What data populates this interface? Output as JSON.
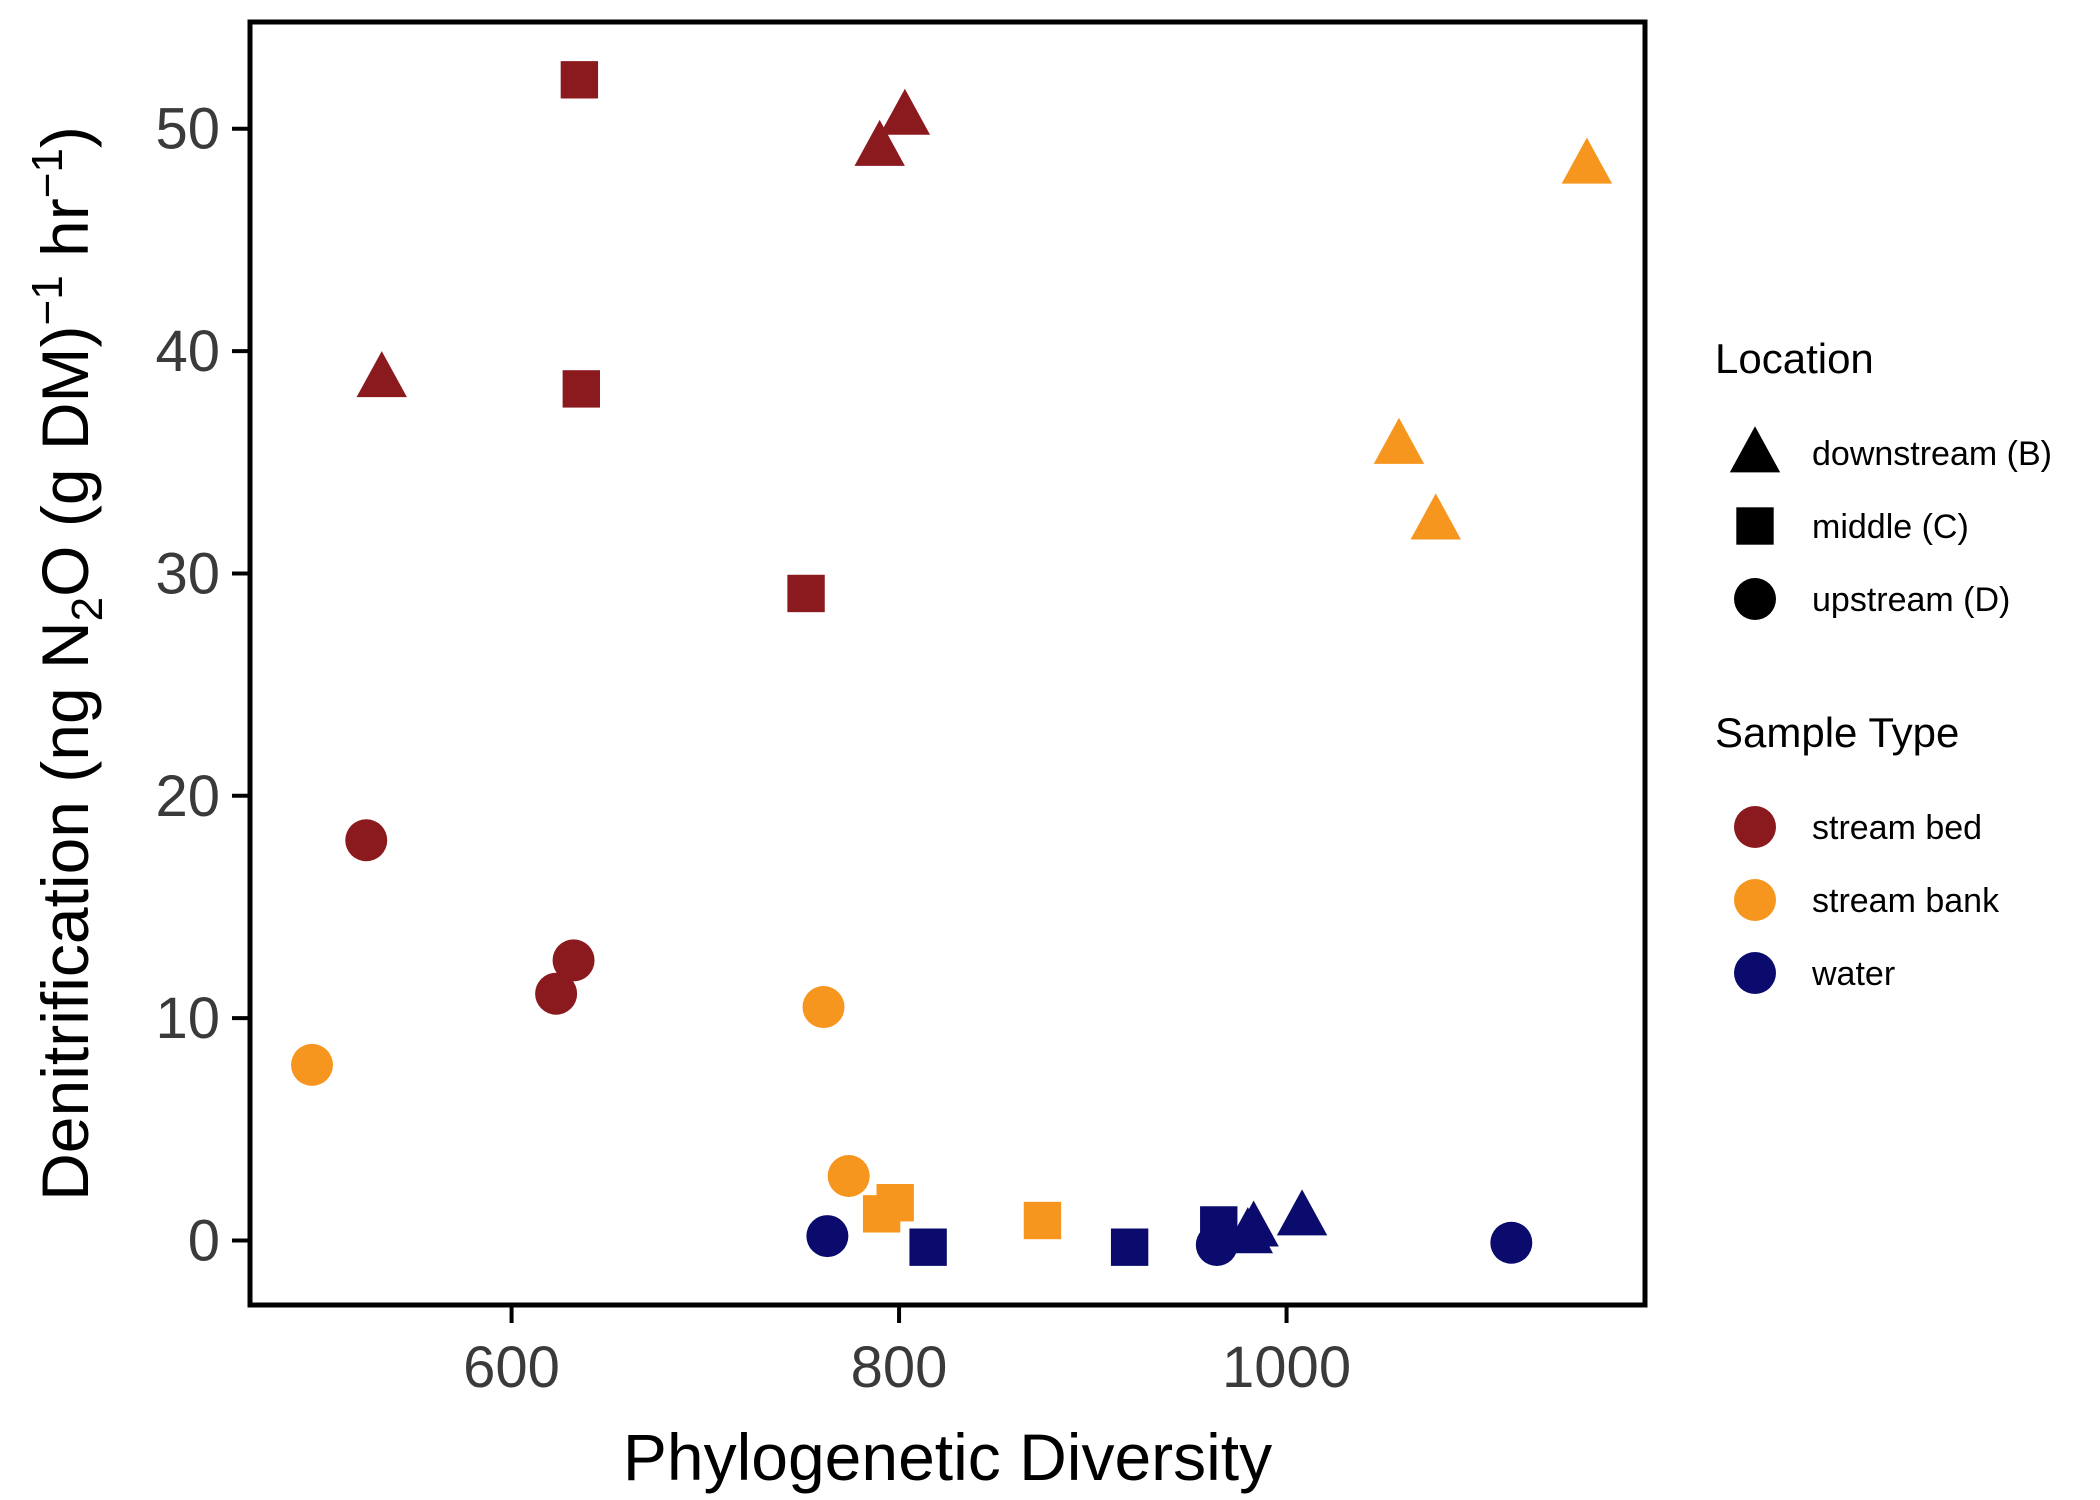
{
  "chart_data": {
    "type": "scatter",
    "xlabel": "Phylogenetic Diversity",
    "ylabel_parts": [
      "Denitrification (ng N",
      "2",
      "O (g DM)",
      "−1",
      " hr",
      "−1",
      ")"
    ],
    "xlim": [
      465,
      1185
    ],
    "ylim": [
      -2.9,
      54.8
    ],
    "xticks": [
      600,
      800,
      1000
    ],
    "yticks": [
      0,
      10,
      20,
      30,
      40,
      50
    ],
    "grid": false,
    "legend_position": "right",
    "legends": {
      "location": {
        "title": "Location",
        "items": [
          {
            "key": "downstream",
            "label": "downstream (B)",
            "shape": "triangle"
          },
          {
            "key": "middle",
            "label": "middle (C)",
            "shape": "square"
          },
          {
            "key": "upstream",
            "label": "upstream (D)",
            "shape": "circle"
          }
        ]
      },
      "sample_type": {
        "title": "Sample Type",
        "items": [
          {
            "key": "bed",
            "label": "stream bed",
            "color": "#8B1A1F"
          },
          {
            "key": "bank",
            "label": "stream bank",
            "color": "#F7961E"
          },
          {
            "key": "water",
            "label": "water",
            "color": "#0B0B6E"
          }
        ]
      }
    },
    "points": [
      {
        "x": 533,
        "y": 38.8,
        "location": "downstream",
        "type": "bed"
      },
      {
        "x": 635,
        "y": 52.2,
        "location": "middle",
        "type": "bed"
      },
      {
        "x": 636,
        "y": 38.3,
        "location": "middle",
        "type": "bed"
      },
      {
        "x": 790,
        "y": 49.2,
        "location": "downstream",
        "type": "bed"
      },
      {
        "x": 803,
        "y": 50.6,
        "location": "downstream",
        "type": "bed"
      },
      {
        "x": 752,
        "y": 29.1,
        "location": "middle",
        "type": "bed"
      },
      {
        "x": 525,
        "y": 18.0,
        "location": "upstream",
        "type": "bed"
      },
      {
        "x": 632,
        "y": 12.6,
        "location": "upstream",
        "type": "bed"
      },
      {
        "x": 623,
        "y": 11.1,
        "location": "upstream",
        "type": "bed"
      },
      {
        "x": 1155,
        "y": 48.4,
        "location": "downstream",
        "type": "bank"
      },
      {
        "x": 1058,
        "y": 35.8,
        "location": "downstream",
        "type": "bank"
      },
      {
        "x": 1077,
        "y": 32.4,
        "location": "downstream",
        "type": "bank"
      },
      {
        "x": 497,
        "y": 7.9,
        "location": "upstream",
        "type": "bank"
      },
      {
        "x": 761,
        "y": 10.5,
        "location": "upstream",
        "type": "bank"
      },
      {
        "x": 774,
        "y": 2.9,
        "location": "upstream",
        "type": "bank"
      },
      {
        "x": 791,
        "y": 1.2,
        "location": "middle",
        "type": "bank"
      },
      {
        "x": 798,
        "y": 1.7,
        "location": "middle",
        "type": "bank"
      },
      {
        "x": 874,
        "y": 0.9,
        "location": "middle",
        "type": "bank"
      },
      {
        "x": 763,
        "y": 0.2,
        "location": "upstream",
        "type": "water"
      },
      {
        "x": 815,
        "y": -0.3,
        "location": "middle",
        "type": "water"
      },
      {
        "x": 919,
        "y": -0.3,
        "location": "middle",
        "type": "water"
      },
      {
        "x": 965,
        "y": 0.7,
        "location": "middle",
        "type": "water"
      },
      {
        "x": 964,
        "y": -0.2,
        "location": "upstream",
        "type": "water"
      },
      {
        "x": 980,
        "y": 0.3,
        "location": "downstream",
        "type": "water"
      },
      {
        "x": 983,
        "y": 0.6,
        "location": "downstream",
        "type": "water"
      },
      {
        "x": 1008,
        "y": 1.1,
        "location": "downstream",
        "type": "water"
      },
      {
        "x": 1116,
        "y": -0.1,
        "location": "upstream",
        "type": "water"
      }
    ]
  }
}
